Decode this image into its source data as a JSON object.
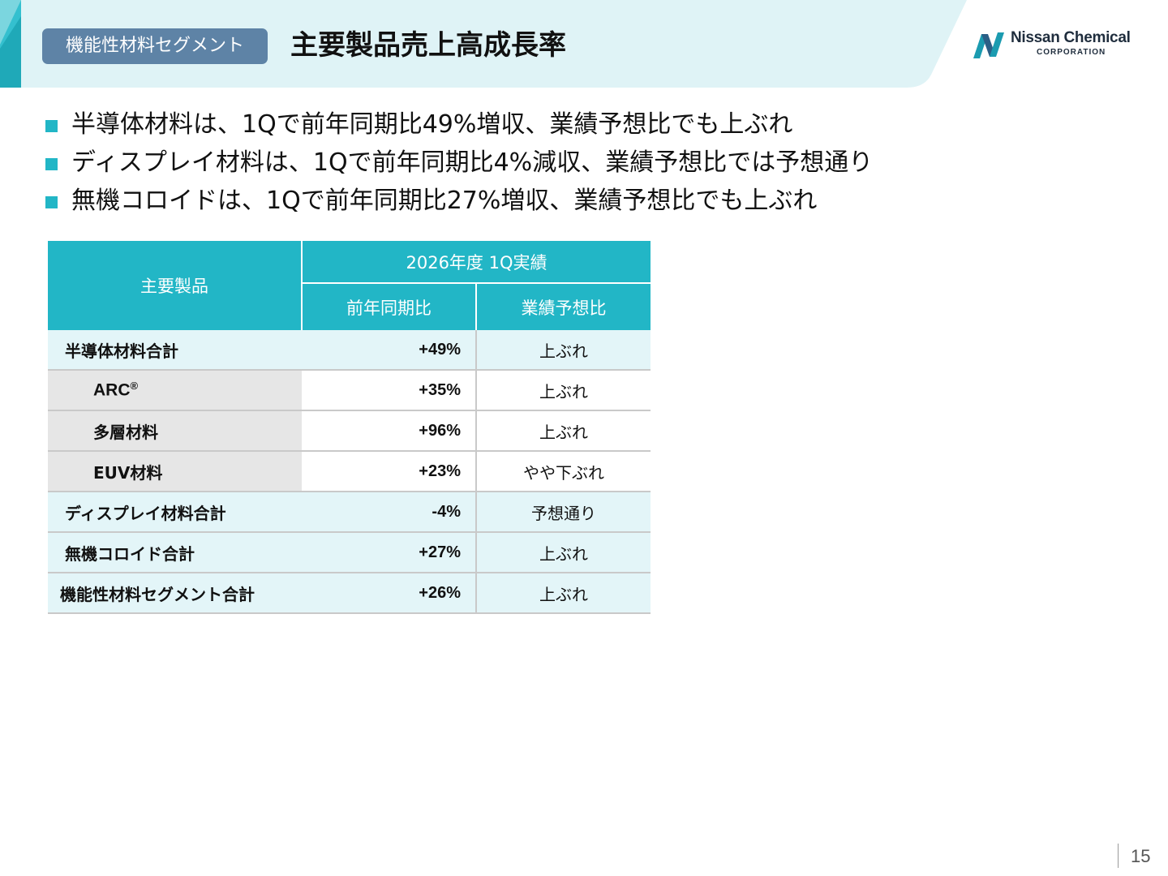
{
  "header": {
    "segment_label": "機能性材料セグメント",
    "title": "主要製品売上高成長率",
    "logo_name": "Nissan Chemical",
    "logo_sub": "CORPORATION",
    "band_color": "#dff3f6",
    "accent_color": "#22b6c6"
  },
  "bullets": [
    "半導体材料は、1Qで前年同期比49%増収、業績予想比でも上ぶれ",
    "ディスプレイ材料は、1Qで前年同期比4%減収、業績予想比では予想通り",
    "無機コロイドは、1Qで前年同期比27%増収、業績予想比でも上ぶれ"
  ],
  "table": {
    "header_product": "主要製品",
    "header_period": "2026年度 1Q実績",
    "header_yoy": "前年同期比",
    "header_vs_forecast": "業績予想比",
    "rows": [
      {
        "name": "半導体材料合計",
        "yoy": "+49%",
        "vs_forecast": "上ぶれ"
      },
      {
        "name": "ARC",
        "name_mark": "®",
        "yoy": "+35%",
        "vs_forecast": "上ぶれ"
      },
      {
        "name": "多層材料",
        "yoy": "+96%",
        "vs_forecast": "上ぶれ"
      },
      {
        "name": "EUV材料",
        "yoy": "+23%",
        "vs_forecast": "やや下ぶれ"
      },
      {
        "name": "ディスプレイ材料合計",
        "yoy": "-4%",
        "vs_forecast": "予想通り"
      },
      {
        "name": "無機コロイド合計",
        "yoy": "+27%",
        "vs_forecast": "上ぶれ"
      },
      {
        "name": "機能性材料セグメント合計",
        "yoy": "+26%",
        "vs_forecast": "上ぶれ"
      }
    ]
  },
  "footer": {
    "page_number": "15"
  }
}
